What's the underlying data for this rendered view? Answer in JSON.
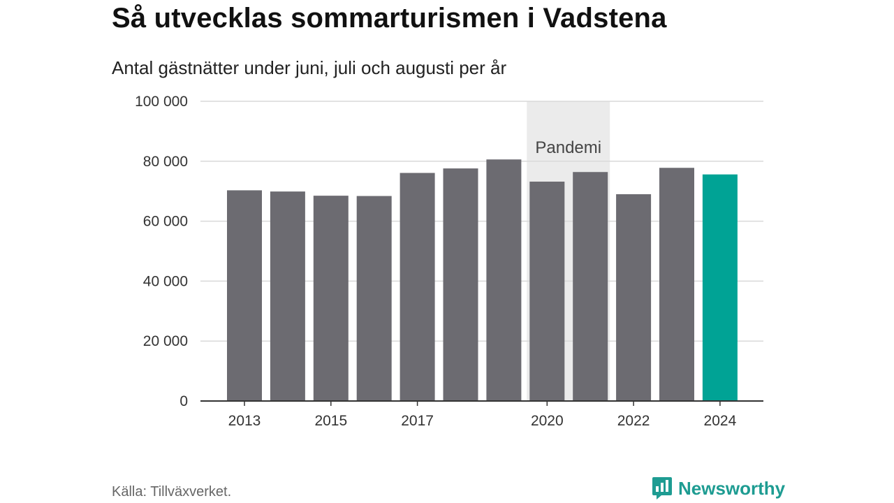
{
  "title": "Så utvecklas sommarturismen i Vadstena",
  "subtitle": "Antal gästnätter under juni, juli och augusti per år",
  "source": "Källa: Tillväxverket.",
  "brand": {
    "name": "Newsworthy",
    "icon": "newsworthy-logo-icon",
    "color": "#1e9c92"
  },
  "chart_data": {
    "type": "bar",
    "categories": [
      "2013",
      "2014",
      "2015",
      "2016",
      "2017",
      "2018",
      "2019",
      "2020",
      "2021",
      "2022",
      "2023",
      "2024"
    ],
    "values": [
      70300,
      69900,
      68500,
      68400,
      76100,
      77600,
      80600,
      73200,
      76400,
      69000,
      77800,
      75600
    ],
    "highlight_index": 11,
    "colors": {
      "bar": "#6c6b71",
      "highlight": "#00a395",
      "grid": "#d9d9d9",
      "axis": "#333333",
      "band": "#ebebeb"
    },
    "ylim": [
      0,
      100000
    ],
    "y_ticks": [
      0,
      20000,
      40000,
      60000,
      80000,
      100000
    ],
    "y_tick_labels": [
      "0",
      "20 000",
      "40 000",
      "60 000",
      "80 000",
      "100 000"
    ],
    "x_tick_labels": [
      "2013",
      "2015",
      "2017",
      "2020",
      "2022",
      "2024"
    ],
    "grid": true,
    "annotation_band": {
      "label": "Pandemi",
      "categories": [
        "2020",
        "2021"
      ]
    }
  }
}
